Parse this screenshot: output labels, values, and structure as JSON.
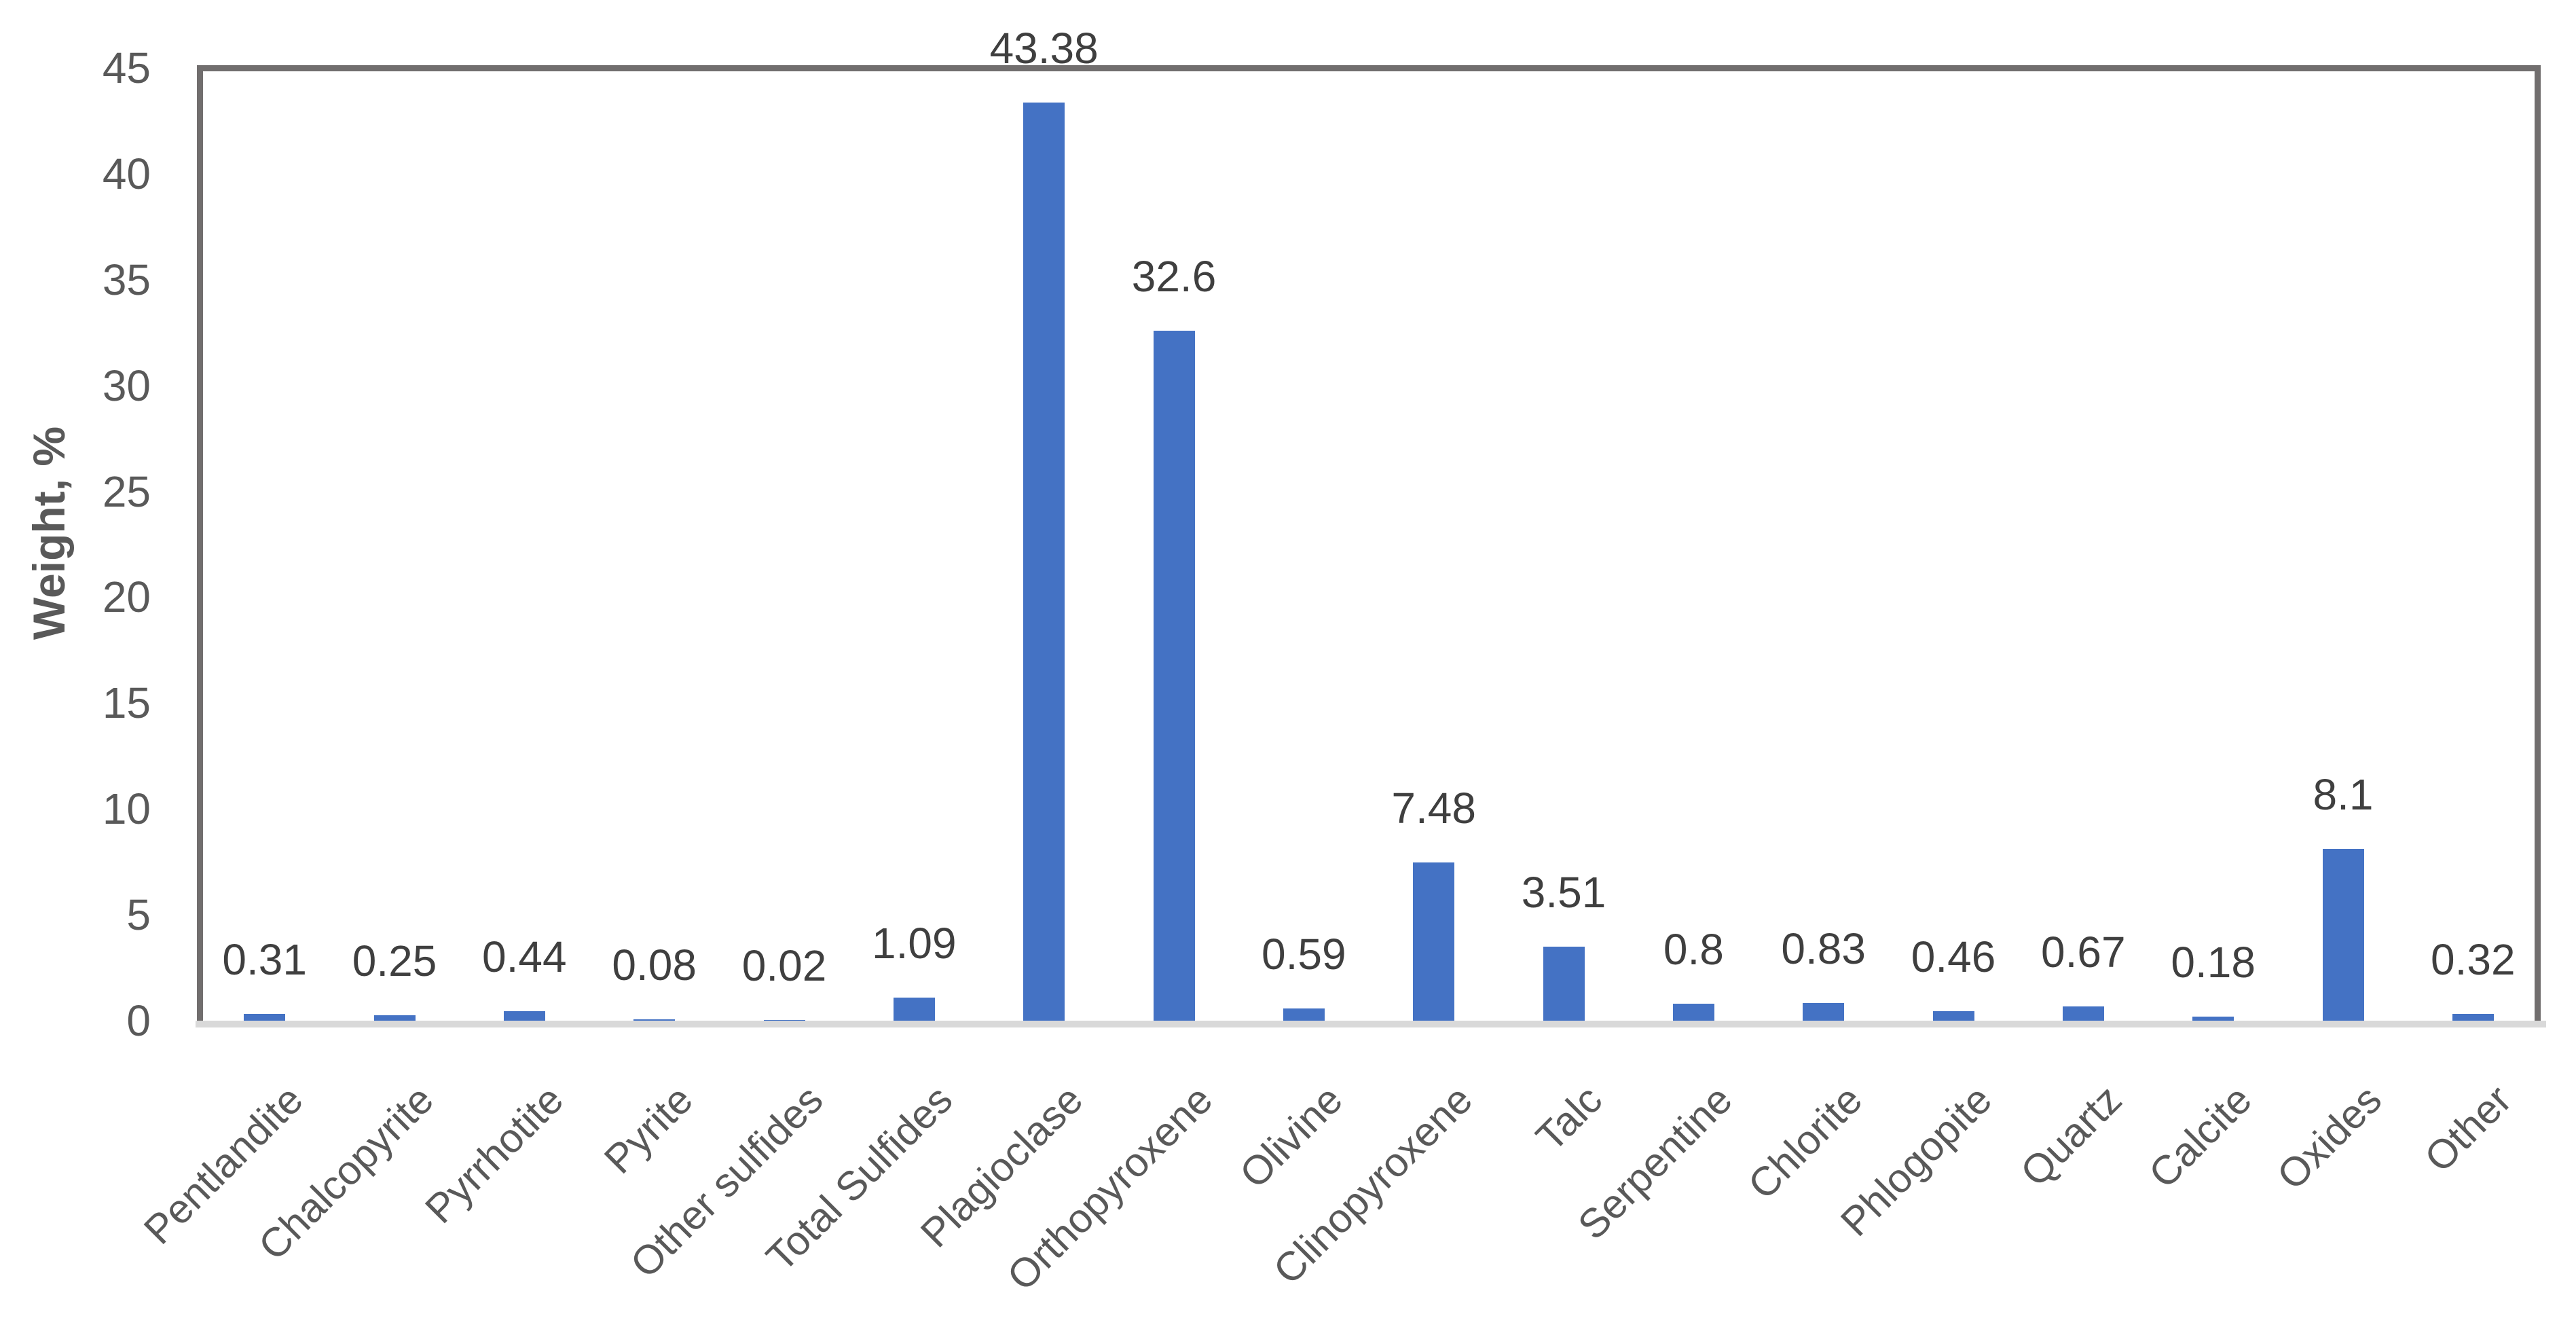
{
  "chart_data": {
    "type": "bar",
    "title": "",
    "xlabel": "",
    "ylabel": "Weight, %",
    "ylim": [
      0,
      45
    ],
    "yticks": [
      0,
      5,
      10,
      15,
      20,
      25,
      30,
      35,
      40,
      45
    ],
    "grid": "off",
    "legend_position": "none",
    "bar_color": "#4472c4",
    "categories": [
      "Pentlandite",
      "Chalcopyrite",
      "Pyrrhotite",
      "Pyrite",
      "Other sulfides",
      "Total Sulfides",
      "Plagioclase",
      "Orthopyroxene",
      "Olivine",
      "Clinopyroxene",
      "Talc",
      "Serpentine",
      "Chlorite",
      "Phlogopite",
      "Quartz",
      "Calcite",
      "Oxides",
      "Other"
    ],
    "values": [
      0.31,
      0.25,
      0.44,
      0.08,
      0.02,
      1.09,
      43.38,
      32.6,
      0.59,
      7.48,
      3.51,
      0.8,
      0.83,
      0.46,
      0.67,
      0.18,
      8.1,
      0.32
    ],
    "value_labels": [
      "0.31",
      "0.25",
      "0.44",
      "0.08",
      "0.02",
      "1.09",
      "43.38",
      "32.6",
      "0.59",
      "7.48",
      "3.51",
      "0.8",
      "0.83",
      "0.46",
      "0.67",
      "0.18",
      "8.1",
      "0.32"
    ]
  },
  "colors": {
    "bar": "#4472c4",
    "dark_axis": "#716e6e",
    "light_axis": "#d9d9d9",
    "tick_text": "#595959",
    "value_text": "#3f3f3f"
  }
}
